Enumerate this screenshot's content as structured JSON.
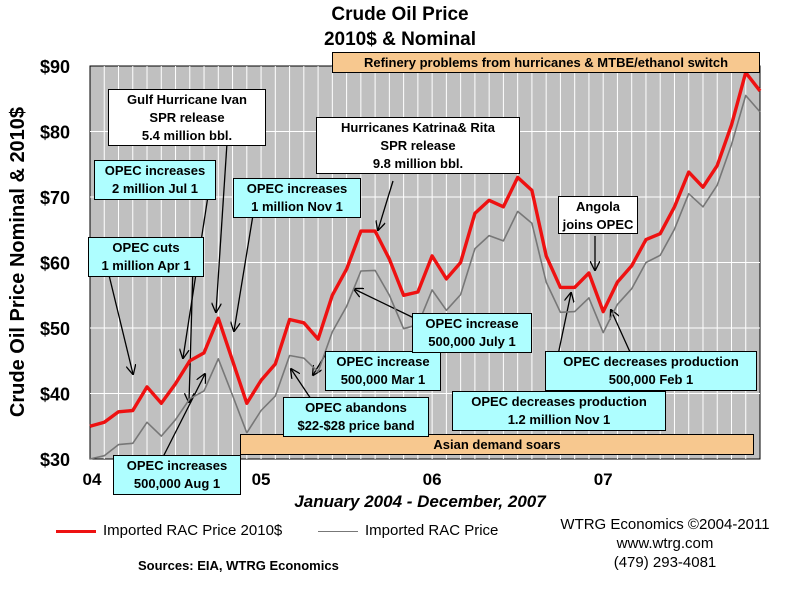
{
  "chart_data": {
    "type": "line",
    "title": "Crude Oil Price",
    "subtitle": "2010$ & Nominal",
    "ylabel": "Crude Oil Price Nominal & 2010$",
    "xlabel": "January 2004 - December, 2007",
    "ylim": [
      30,
      90
    ],
    "yticks": [
      "$30",
      "$40",
      "$50",
      "$60",
      "$70",
      "$80",
      "$90"
    ],
    "xticks": [
      "04",
      "05",
      "06",
      "07"
    ],
    "grid": true,
    "series": [
      {
        "name": "Imported RAC Price 2010$",
        "color": "#ee1111",
        "values": [
          35,
          35.6,
          37.2,
          37.4,
          41,
          38.5,
          41.5,
          45,
          46.2,
          51.5,
          45,
          38.5,
          42,
          44.5,
          51.3,
          50.8,
          48.3,
          55,
          59,
          64.8,
          64.8,
          60.5,
          55,
          55.5,
          61,
          57.5,
          60,
          67.5,
          69.5,
          68.5,
          73,
          71,
          61,
          56.2,
          56.2,
          58.4,
          52.5,
          57,
          59.5,
          63.5,
          64.4,
          68.5,
          73.8,
          71.5,
          74.8,
          81,
          89,
          86.2
        ]
      },
      {
        "name": "Imported RAC Price",
        "color": "#777777",
        "values": [
          30,
          30.5,
          32.2,
          32.4,
          35.6,
          33.5,
          36,
          39.2,
          40.4,
          45.3,
          39.7,
          34,
          37.4,
          39.6,
          45.8,
          45.4,
          43.3,
          49.4,
          53.3,
          58.7,
          58.8,
          55,
          49.9,
          50.5,
          55.8,
          52.7,
          55.1,
          62.1,
          64.1,
          63.3,
          67.8,
          66,
          57,
          52.4,
          52.5,
          54.6,
          49.3,
          53.6,
          56,
          60,
          61.1,
          65.1,
          70.5,
          68.5,
          71.8,
          78,
          85.5,
          83
        ]
      }
    ]
  },
  "annotations": {
    "refinery": "Refinery problems from hurricanes & MTBE/ethanol switch",
    "asian": "Asian demand soars",
    "ivan": [
      "Gulf Hurricane Ivan",
      "SPR release",
      "5.4 million bbl."
    ],
    "katrina": [
      "Hurricanes Katrina& Rita",
      "SPR release",
      "9.8 million bbl."
    ],
    "angola": [
      "Angola",
      "joins OPEC"
    ],
    "opec_jul1": [
      "OPEC increases",
      "2 million Jul 1"
    ],
    "opec_nov1": [
      "OPEC increases",
      "1 million Nov 1"
    ],
    "opec_cuts": [
      "OPEC cuts",
      "1 million Apr 1"
    ],
    "opec_aug1": [
      "OPEC increases",
      "500,000 Aug 1"
    ],
    "opec_mar1": [
      "OPEC increase",
      "500,000 Mar 1"
    ],
    "opec_abandons": [
      "OPEC abandons",
      "$22-$28  price band"
    ],
    "opec_july1": [
      "OPEC increase",
      "500,000 July 1"
    ],
    "opec_dec_nov1": [
      "OPEC decreases production",
      "1.2 million Nov 1"
    ],
    "opec_dec_feb1": [
      "OPEC decreases production",
      "500,000 Feb 1"
    ]
  },
  "footer": {
    "sources": "Sources: EIA, WTRG Economics",
    "company": "WTRG Economics  ©2004-2011",
    "website": "www.wtrg.com",
    "phone": "(479) 293-4081"
  },
  "legend": {
    "nominal_2010": "Imported RAC Price 2010$",
    "nominal": "Imported RAC Price"
  },
  "colors": {
    "plot_bg": "#c0c0c0",
    "band_bg": "#f7c88f",
    "box_cyan": "#aefeff"
  }
}
